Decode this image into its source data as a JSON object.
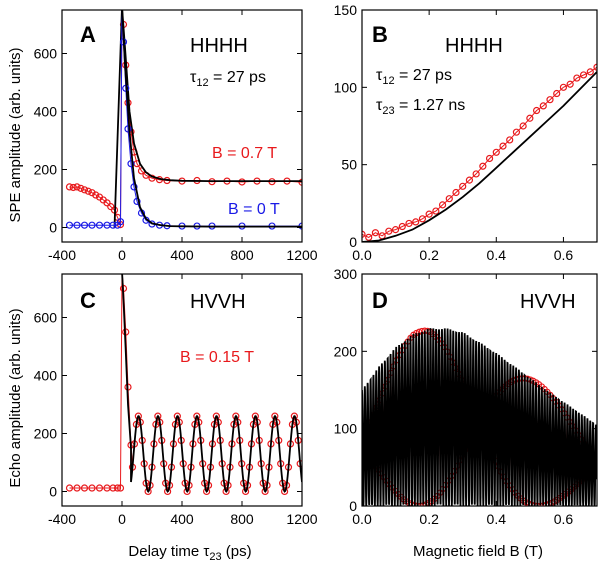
{
  "chart_data": [
    {
      "panel": "A",
      "type": "scatter",
      "title": "HHHH",
      "annotation": "τ12 = 27 ps",
      "ylabel": "SPE amplitude (arb. units)",
      "xlabel": "",
      "xlim": [
        -400,
        1200
      ],
      "ylim": [
        -50,
        750
      ],
      "xticks": [
        -400,
        0,
        400,
        800,
        1200
      ],
      "yticks": [
        0,
        200,
        400,
        600
      ],
      "series": [
        {
          "name": "B = 0.7 T",
          "color": "#e8191c",
          "x": [
            -350,
            -325,
            -300,
            -275,
            -250,
            -225,
            -200,
            -175,
            -150,
            -125,
            -100,
            -75,
            -50,
            -30,
            -10,
            0,
            10,
            25,
            40,
            60,
            80,
            100,
            130,
            160,
            200,
            250,
            300,
            400,
            500,
            600,
            700,
            800,
            900,
            1000,
            1100,
            1200
          ],
          "y": [
            140,
            138,
            140,
            135,
            130,
            125,
            120,
            112,
            105,
            95,
            85,
            72,
            60,
            35,
            10,
            760,
            700,
            560,
            430,
            330,
            260,
            220,
            195,
            180,
            170,
            165,
            162,
            160,
            162,
            158,
            160,
            157,
            160,
            158,
            160,
            156
          ],
          "fit_x": [
            -50,
            0,
            20,
            50,
            80,
            120,
            160,
            200,
            260,
            320,
            400,
            600,
            800,
            1000,
            1200
          ],
          "fit_y": [
            0,
            760,
            620,
            400,
            290,
            220,
            190,
            176,
            167,
            163,
            161,
            160,
            160,
            160,
            160
          ]
        },
        {
          "name": "B = 0 T",
          "color": "#1a1ae6",
          "x": [
            -350,
            -300,
            -250,
            -200,
            -150,
            -100,
            -60,
            -30,
            -10,
            0,
            10,
            25,
            40,
            60,
            80,
            100,
            130,
            160,
            200,
            250,
            300,
            400,
            500,
            600,
            800,
            1000,
            1200
          ],
          "y": [
            8,
            8,
            8,
            8,
            8,
            8,
            8,
            8,
            20,
            760,
            640,
            480,
            340,
            220,
            140,
            90,
            50,
            25,
            12,
            8,
            6,
            5,
            5,
            5,
            5,
            5,
            5
          ],
          "fit_x": [
            0,
            20,
            50,
            80,
            120,
            160,
            200,
            260,
            320,
            400,
            600,
            800,
            1000,
            1200
          ],
          "fit_y": [
            760,
            560,
            330,
            170,
            70,
            30,
            14,
            8,
            5,
            4,
            3,
            3,
            3,
            3
          ]
        }
      ]
    },
    {
      "panel": "B",
      "type": "scatter",
      "title": "HHHH",
      "annotations": [
        "τ12 = 27 ps",
        "τ23 = 1.27 ns"
      ],
      "xlabel": "",
      "ylabel": "",
      "xlim": [
        0.0,
        0.7
      ],
      "ylim": [
        0,
        150
      ],
      "xticks": [
        0.0,
        0.2,
        0.4,
        0.6
      ],
      "yticks": [
        0,
        50,
        100,
        150
      ],
      "series": [
        {
          "name": "",
          "color": "#e8191c",
          "x": [
            0.0,
            0.02,
            0.04,
            0.06,
            0.08,
            0.1,
            0.12,
            0.14,
            0.16,
            0.18,
            0.2,
            0.22,
            0.24,
            0.26,
            0.28,
            0.3,
            0.32,
            0.34,
            0.36,
            0.38,
            0.4,
            0.42,
            0.44,
            0.46,
            0.48,
            0.5,
            0.52,
            0.54,
            0.56,
            0.58,
            0.6,
            0.62,
            0.64,
            0.66,
            0.68,
            0.7
          ],
          "y": [
            5,
            3,
            6,
            4,
            7,
            8,
            10,
            12,
            13,
            15,
            18,
            20,
            24,
            28,
            32,
            36,
            40,
            44,
            49,
            54,
            58,
            62,
            66,
            71,
            75,
            80,
            85,
            88,
            92,
            96,
            100,
            102,
            106,
            108,
            110,
            113
          ],
          "fit_x": [
            0.0,
            0.05,
            0.1,
            0.15,
            0.2,
            0.25,
            0.3,
            0.35,
            0.4,
            0.45,
            0.5,
            0.55,
            0.6,
            0.65,
            0.7
          ],
          "fit_y": [
            0,
            1,
            4,
            8,
            14,
            21,
            29,
            38,
            48,
            58,
            68,
            78,
            88,
            99,
            110
          ]
        }
      ]
    },
    {
      "panel": "C",
      "type": "scatter",
      "title": "HVVH",
      "annotation": "B = 0.15 T",
      "ylabel": "Echo amplitude (arb. units)",
      "xlabel": "Delay time τ23 (ps)",
      "xlim": [
        -400,
        1200
      ],
      "ylim": [
        -50,
        750
      ],
      "xticks": [
        -400,
        0,
        400,
        800,
        1200
      ],
      "yticks": [
        0,
        200,
        400,
        600
      ],
      "series": [
        {
          "name": "",
          "color": "#e8191c",
          "period_ps": 130,
          "mean": 130,
          "amplitude": 130,
          "x": [
            -350,
            -300,
            -250,
            -200,
            -150,
            -100,
            -60,
            -30,
            -10,
            0,
            10,
            25,
            40,
            60
          ],
          "y": [
            12,
            12,
            12,
            12,
            12,
            12,
            12,
            12,
            12,
            760,
            700,
            550,
            360,
            160
          ],
          "fit_x": [
            0,
            10,
            25,
            40,
            60
          ],
          "fit_y": [
            760,
            660,
            480,
            300,
            150
          ]
        }
      ]
    },
    {
      "panel": "D",
      "type": "scatter",
      "title": "HVVH",
      "xlabel": "Magnetic field B (T)",
      "ylabel": "",
      "xlim": [
        0.0,
        0.7
      ],
      "ylim": [
        0,
        300
      ],
      "xticks": [
        0.0,
        0.2,
        0.4,
        0.6
      ],
      "yticks": [
        0,
        100,
        200,
        300
      ],
      "series": [
        {
          "name": "",
          "color": "#e8191c",
          "envelope_B": [
            0.0,
            0.05,
            0.1,
            0.15,
            0.2,
            0.25,
            0.3,
            0.35,
            0.4,
            0.45,
            0.5,
            0.55,
            0.6,
            0.65,
            0.7
          ],
          "envelope_max": [
            150,
            180,
            205,
            222,
            230,
            230,
            225,
            212,
            198,
            182,
            166,
            150,
            135,
            120,
            105
          ],
          "oscillation_period_T": 0.0085
        }
      ]
    }
  ],
  "labels": {
    "a_letter": "A",
    "b_letter": "B",
    "c_letter": "C",
    "d_letter": "D",
    "a_title": "HHHH",
    "b_title": "HHHH",
    "c_title": "HVVH",
    "d_title": "HVVH",
    "a_tau_main": "τ",
    "a_tau_sub": "12",
    "a_tau_rest": " = 27 ps",
    "b_tau1_main": "τ",
    "b_tau1_sub": "12",
    "b_tau1_rest": " = 27 ps",
    "b_tau2_main": "τ",
    "b_tau2_sub": "23",
    "b_tau2_rest": " = 1.27 ns",
    "a_leg_red": "B = 0.7 T",
    "a_leg_blue": "B = 0 T",
    "c_leg_red": "B = 0.15 T",
    "ylabel_top": "SPE amplitude (arb. units)",
    "ylabel_bottom": "Echo amplitude (arb. units)",
    "xlabel_left_main": "Delay time τ",
    "xlabel_left_sub": "23",
    "xlabel_left_rest": " (ps)",
    "xlabel_right": "Magnetic field B (T)"
  }
}
